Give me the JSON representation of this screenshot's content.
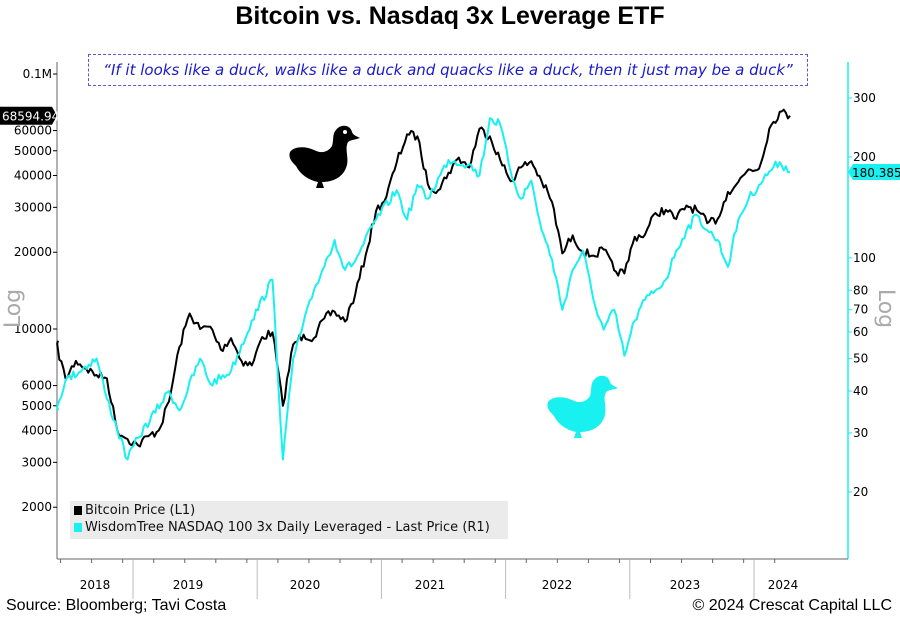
{
  "title": "Bitcoin vs. Nasdaq 3x Leverage ETF",
  "quote": "“If it looks like a duck, walks like a duck and quacks like a duck, then it just may be a duck”",
  "source": "Source: Bloomberg; Tavi Costa",
  "copyright": "© 2024 Crescat Capital LLC",
  "colors": {
    "bitcoin": "#000000",
    "etf": "#19f0f0",
    "quote": "#1a1acc",
    "legend_bg": "#ebebeb"
  },
  "icons": [
    "black-duck-icon",
    "cyan-duck-icon"
  ],
  "chart_data": {
    "type": "line",
    "title": "Bitcoin vs. Nasdaq 3x Leverage ETF",
    "legend_position": "bottom-left",
    "grid": false,
    "x_tick_labels": [
      "2018",
      "2019",
      "2020",
      "2021",
      "2022",
      "2023",
      "2024"
    ],
    "y_left": {
      "label": "Log",
      "scale": "log",
      "range": [
        1500,
        100000
      ],
      "ticks": [
        {
          "v": 100000,
          "label": "0.1M"
        },
        {
          "v": 60000,
          "label": "60000"
        },
        {
          "v": 50000,
          "label": "50000"
        },
        {
          "v": 40000,
          "label": "40000"
        },
        {
          "v": 30000,
          "label": "30000"
        },
        {
          "v": 20000,
          "label": "20000"
        },
        {
          "v": 10000,
          "label": "10000"
        },
        {
          "v": 6000,
          "label": "6000"
        },
        {
          "v": 5000,
          "label": "5000"
        },
        {
          "v": 4000,
          "label": "4000"
        },
        {
          "v": 3000,
          "label": "3000"
        },
        {
          "v": 2000,
          "label": "2000"
        }
      ]
    },
    "y_right": {
      "label": "Log",
      "scale": "log",
      "range": [
        14,
        330
      ],
      "ticks": [
        {
          "v": 300,
          "label": "300"
        },
        {
          "v": 200,
          "label": "200"
        },
        {
          "v": 100,
          "label": "100"
        },
        {
          "v": 80,
          "label": "80"
        },
        {
          "v": 70,
          "label": "70"
        },
        {
          "v": 60,
          "label": "60"
        },
        {
          "v": 50,
          "label": "50"
        },
        {
          "v": 40,
          "label": "40"
        },
        {
          "v": 30,
          "label": "30"
        },
        {
          "v": 20,
          "label": "20"
        }
      ]
    },
    "series": [
      {
        "name": "Bitcoin Price (L1)",
        "axis": "left",
        "last_label": "68594.94",
        "x": [
          "2018-05",
          "2018-06",
          "2018-07",
          "2018-08",
          "2018-09",
          "2018-10",
          "2018-11",
          "2018-12",
          "2019-01",
          "2019-02",
          "2019-03",
          "2019-04",
          "2019-05",
          "2019-06",
          "2019-07",
          "2019-08",
          "2019-09",
          "2019-10",
          "2019-11",
          "2019-12",
          "2020-01",
          "2020-02",
          "2020-03",
          "2020-04",
          "2020-05",
          "2020-06",
          "2020-07",
          "2020-08",
          "2020-09",
          "2020-10",
          "2020-11",
          "2020-12",
          "2021-01",
          "2021-02",
          "2021-03",
          "2021-04",
          "2021-05",
          "2021-06",
          "2021-07",
          "2021-08",
          "2021-09",
          "2021-10",
          "2021-11",
          "2021-12",
          "2022-01",
          "2022-02",
          "2022-03",
          "2022-04",
          "2022-05",
          "2022-06",
          "2022-07",
          "2022-08",
          "2022-09",
          "2022-10",
          "2022-11",
          "2022-12",
          "2023-01",
          "2023-02",
          "2023-03",
          "2023-04",
          "2023-05",
          "2023-06",
          "2023-07",
          "2023-08",
          "2023-09",
          "2023-10",
          "2023-11",
          "2023-12",
          "2024-01",
          "2024-02",
          "2024-03",
          "2024-04"
        ],
        "values": [
          9000,
          6400,
          7500,
          7000,
          6600,
          6400,
          4000,
          3700,
          3500,
          3800,
          4000,
          5200,
          8500,
          11500,
          10000,
          10200,
          8300,
          9200,
          7500,
          7200,
          9300,
          9700,
          5000,
          8700,
          9500,
          9200,
          11000,
          11700,
          10700,
          13700,
          19500,
          29000,
          33000,
          45000,
          58000,
          57000,
          37000,
          35000,
          41000,
          47000,
          43000,
          61000,
          57000,
          46000,
          38000,
          43000,
          45500,
          38000,
          31500,
          19800,
          23300,
          20000,
          19400,
          20500,
          17000,
          16500,
          23000,
          23500,
          28500,
          29300,
          27000,
          30500,
          29200,
          26000,
          27000,
          34500,
          37700,
          42300,
          42500,
          61000,
          71000,
          68594.94
        ]
      },
      {
        "name": "WisdomTree NASDAQ 100 3x Daily Leveraged - Last Price (R1)",
        "axis": "right",
        "last_label": "180.3850",
        "x": [
          "2018-05",
          "2018-06",
          "2018-09",
          "2018-10",
          "2018-12",
          "2019-01",
          "2019-04",
          "2019-05",
          "2019-07",
          "2019-08",
          "2019-10",
          "2019-12",
          "2020-02",
          "2020-03",
          "2020-04",
          "2020-06",
          "2020-08",
          "2020-09",
          "2020-10",
          "2020-12",
          "2021-02",
          "2021-03",
          "2021-04",
          "2021-05",
          "2021-07",
          "2021-09",
          "2021-10",
          "2021-11",
          "2021-12",
          "2022-01",
          "2022-02",
          "2022-03",
          "2022-04",
          "2022-05",
          "2022-06",
          "2022-07",
          "2022-08",
          "2022-09",
          "2022-10",
          "2022-11",
          "2022-12",
          "2023-01",
          "2023-02",
          "2023-03",
          "2023-04",
          "2023-05",
          "2023-06",
          "2023-07",
          "2023-08",
          "2023-09",
          "2023-10",
          "2023-11",
          "2023-12",
          "2024-01",
          "2024-02",
          "2024-03",
          "2024-04"
        ],
        "values": [
          35,
          43,
          50,
          38,
          25,
          29,
          40,
          35,
          50,
          42,
          46,
          65,
          86,
          25,
          50,
          80,
          113,
          92,
          98,
          130,
          159,
          130,
          165,
          150,
          196,
          190,
          176,
          261,
          250,
          181,
          150,
          170,
          121,
          99,
          70,
          92,
          105,
          75,
          61,
          70,
          51,
          65,
          75,
          80,
          86,
          105,
          121,
          134,
          121,
          113,
          94,
          130,
          150,
          165,
          181,
          193,
          180.385
        ]
      }
    ]
  }
}
